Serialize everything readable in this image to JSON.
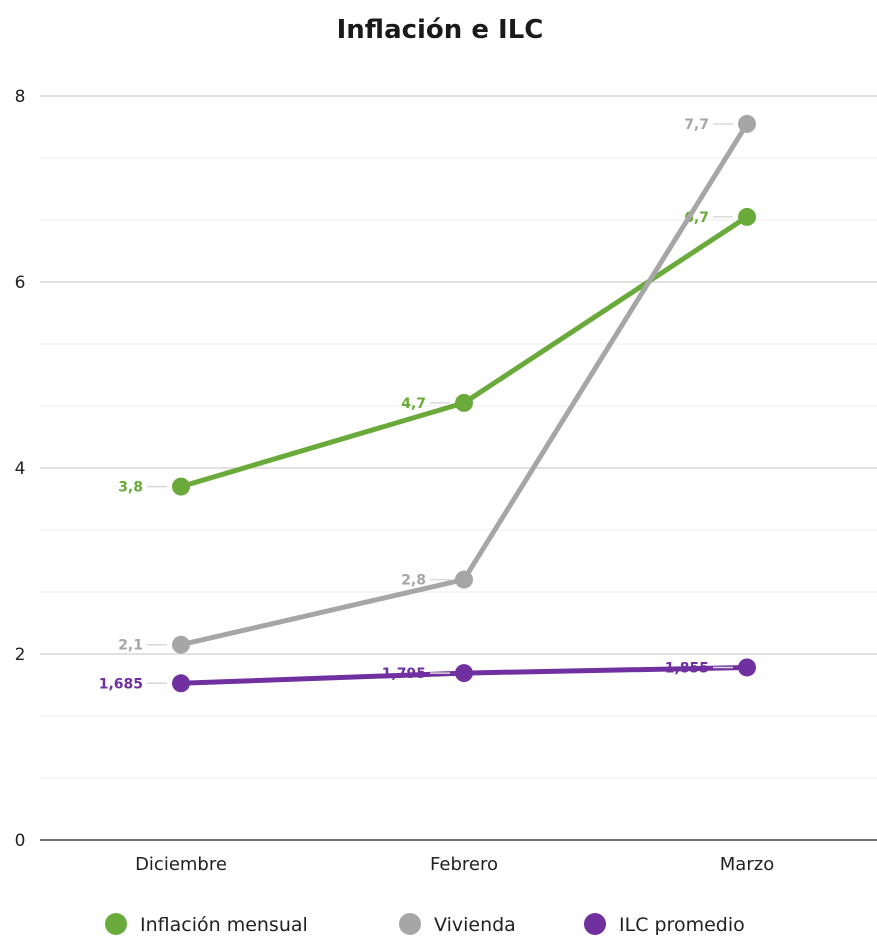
{
  "chart_data": {
    "type": "line",
    "title": "Inflación e ILC",
    "categories": [
      "Diciembre",
      "Febrero",
      "Marzo"
    ],
    "ylim": [
      0,
      8
    ],
    "yticks": [
      0,
      2,
      4,
      6,
      8
    ],
    "grid": true,
    "legend_position": "bottom",
    "series": [
      {
        "name": "Inflación mensual",
        "color": "#6aaa3a",
        "values": [
          3.8,
          4.7,
          6.7
        ],
        "labels": [
          "3,8",
          "4,7",
          "6,7"
        ]
      },
      {
        "name": "Vivienda",
        "color": "#a6a6a6",
        "values": [
          2.1,
          2.8,
          7.7
        ],
        "labels": [
          "2,1",
          "2,8",
          "7,7"
        ]
      },
      {
        "name": "ILC promedio",
        "color": "#7030a0",
        "values": [
          1.685,
          1.795,
          1.855
        ],
        "labels": [
          "1,685",
          "1,795",
          "1,855"
        ]
      }
    ]
  }
}
